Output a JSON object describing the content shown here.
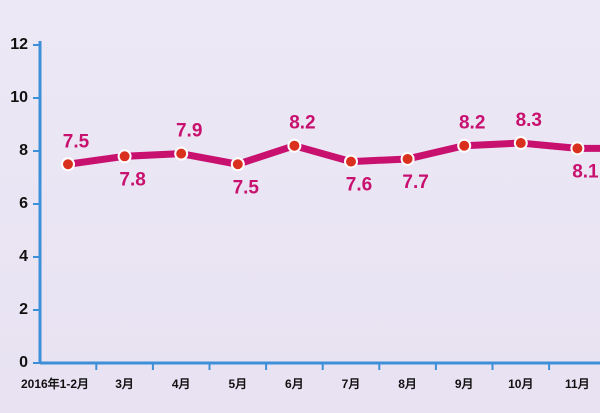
{
  "chart_data": {
    "type": "line",
    "categories": [
      "2016年1-2月",
      "3月",
      "4月",
      "5月",
      "6月",
      "7月",
      "8月",
      "9月",
      "10月",
      "11月"
    ],
    "values": [
      7.5,
      7.8,
      7.9,
      7.5,
      8.2,
      7.6,
      7.7,
      8.2,
      8.3,
      8.1
    ],
    "color": "#c8106f",
    "ylim": [
      0,
      12
    ],
    "yticks": [
      0,
      2,
      4,
      6,
      8,
      10,
      12
    ]
  }
}
